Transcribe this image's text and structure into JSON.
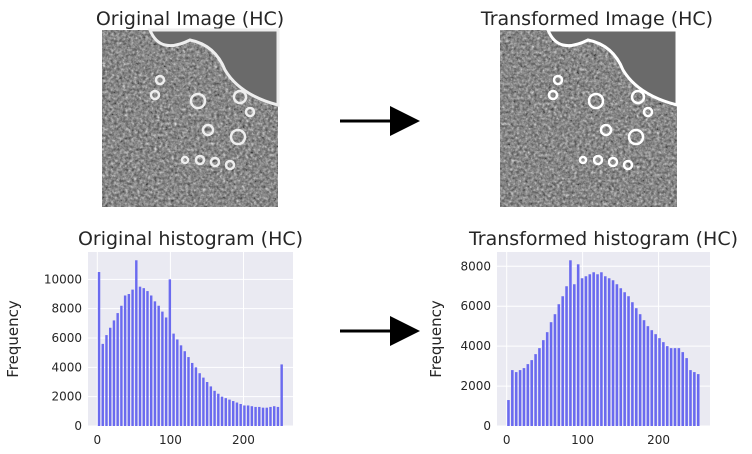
{
  "images": [
    {
      "title": "Original Image (HC)"
    },
    {
      "title": "Transformed Image (HC)"
    }
  ],
  "chart_data": [
    {
      "type": "histogram",
      "title": "Original histogram (HC)",
      "y_label": "Frequency",
      "color": "#6a6aef",
      "grid": true,
      "bins": [
        0,
        5.1,
        10.2,
        15.3,
        20.4,
        25.5,
        30.6,
        35.7,
        40.8,
        45.9,
        51,
        56.1,
        61.2,
        66.3,
        71.4,
        76.5,
        81.6,
        86.7,
        91.8,
        96.9,
        102,
        107.1,
        112.2,
        117.3,
        122.4,
        127.5,
        132.6,
        137.7,
        142.8,
        147.9,
        153,
        158.1,
        163.2,
        168.3,
        173.4,
        178.5,
        183.6,
        188.7,
        193.8,
        198.9,
        204,
        209.1,
        214.2,
        219.3,
        224.4,
        229.5,
        234.6,
        239.7,
        244.8,
        249.9,
        255
      ],
      "values": [
        10500,
        5600,
        6200,
        6700,
        7200,
        7700,
        8200,
        8900,
        9000,
        9300,
        11300,
        9500,
        9400,
        9200,
        8900,
        8500,
        8200,
        7800,
        7400,
        10000,
        6300,
        5900,
        5500,
        5100,
        4700,
        4300,
        4000,
        3600,
        3300,
        3000,
        2700,
        2400,
        2200,
        2000,
        1900,
        1800,
        1700,
        1600,
        1500,
        1400,
        1400,
        1350,
        1300,
        1300,
        1250,
        1250,
        1300,
        1350,
        1300,
        4200
      ],
      "xlim": [
        -12.75,
        267.75
      ],
      "xticks": [
        0,
        100,
        200
      ],
      "ylim": [
        0,
        11865
      ],
      "yticks": [
        0,
        2000,
        4000,
        6000,
        8000,
        10000
      ]
    },
    {
      "type": "histogram",
      "title": "Transformed histogram (HC)",
      "y_label": "Frequency",
      "color": "#6a6aef",
      "grid": true,
      "bins": [
        0,
        5.1,
        10.2,
        15.3,
        20.4,
        25.5,
        30.6,
        35.7,
        40.8,
        45.9,
        51,
        56.1,
        61.2,
        66.3,
        71.4,
        76.5,
        81.6,
        86.7,
        91.8,
        96.9,
        102,
        107.1,
        112.2,
        117.3,
        122.4,
        127.5,
        132.6,
        137.7,
        142.8,
        147.9,
        153,
        158.1,
        163.2,
        168.3,
        173.4,
        178.5,
        183.6,
        188.7,
        193.8,
        198.9,
        204,
        209.1,
        214.2,
        219.3,
        224.4,
        229.5,
        234.6,
        239.7,
        244.8,
        249.9,
        255
      ],
      "values": [
        1300,
        2800,
        2700,
        2800,
        2900,
        3100,
        3300,
        3600,
        3900,
        4300,
        4700,
        5200,
        5600,
        6100,
        6500,
        7000,
        8300,
        7100,
        8100,
        7400,
        7500,
        7600,
        7700,
        7600,
        7700,
        7500,
        7400,
        7300,
        7100,
        6900,
        6700,
        6500,
        6200,
        5900,
        5600,
        5300,
        5000,
        4800,
        4600,
        4400,
        4200,
        4000,
        3900,
        3900,
        3900,
        3700,
        3400,
        2800,
        2700,
        2600
      ],
      "xlim": [
        -12.75,
        267.75
      ],
      "xticks": [
        0,
        100,
        200
      ],
      "ylim": [
        0,
        8715
      ],
      "yticks": [
        0,
        2000,
        4000,
        6000,
        8000
      ]
    }
  ]
}
